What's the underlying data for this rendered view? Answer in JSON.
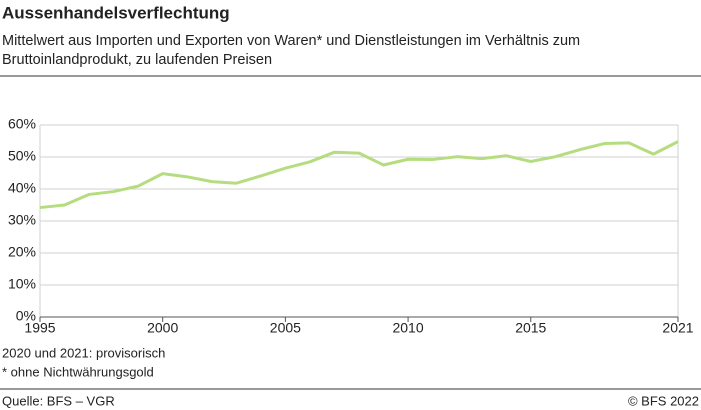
{
  "chart_data": {
    "type": "line",
    "title": "Aussenhandelsverflechtung",
    "subtitle": [
      "Mittelwert aus Importen und Exporten von Waren* und Dienstleistungen im Verhältnis zum",
      "Bruttoinlandprodukt, zu laufenden Preisen"
    ],
    "x": [
      1995,
      1996,
      1997,
      1998,
      1999,
      2000,
      2001,
      2002,
      2003,
      2004,
      2005,
      2006,
      2007,
      2008,
      2009,
      2010,
      2011,
      2012,
      2013,
      2014,
      2015,
      2016,
      2017,
      2018,
      2019,
      2020,
      2021
    ],
    "series": [
      {
        "color": "#b5dd7f",
        "values": [
          34.2,
          35.0,
          38.3,
          39.2,
          40.9,
          44.8,
          43.8,
          42.3,
          41.8,
          44.1,
          46.5,
          48.5,
          51.5,
          51.2,
          47.5,
          49.3,
          49.2,
          50.1,
          49.5,
          50.4,
          48.6,
          50.1,
          52.3,
          54.2,
          54.4,
          50.9,
          54.8
        ]
      }
    ],
    "xlim": [
      1995,
      2021
    ],
    "xticks": [
      1995,
      2000,
      2005,
      2010,
      2015,
      2021
    ],
    "ylim": [
      0,
      60
    ],
    "yticks": [
      {
        "value": 0,
        "label": "0%"
      },
      {
        "value": 10,
        "label": "10%"
      },
      {
        "value": 20,
        "label": "20%"
      },
      {
        "value": 30,
        "label": "30%"
      },
      {
        "value": 40,
        "label": "40%"
      },
      {
        "value": 50,
        "label": "50%"
      },
      {
        "value": 60,
        "label": "60%"
      }
    ],
    "grid": true,
    "notes": [
      "2020 und 2021: provisorisch",
      "* ohne Nichtwährungsgold"
    ],
    "source": "Quelle: BFS – VGR",
    "copyright": "© BFS 2022"
  }
}
